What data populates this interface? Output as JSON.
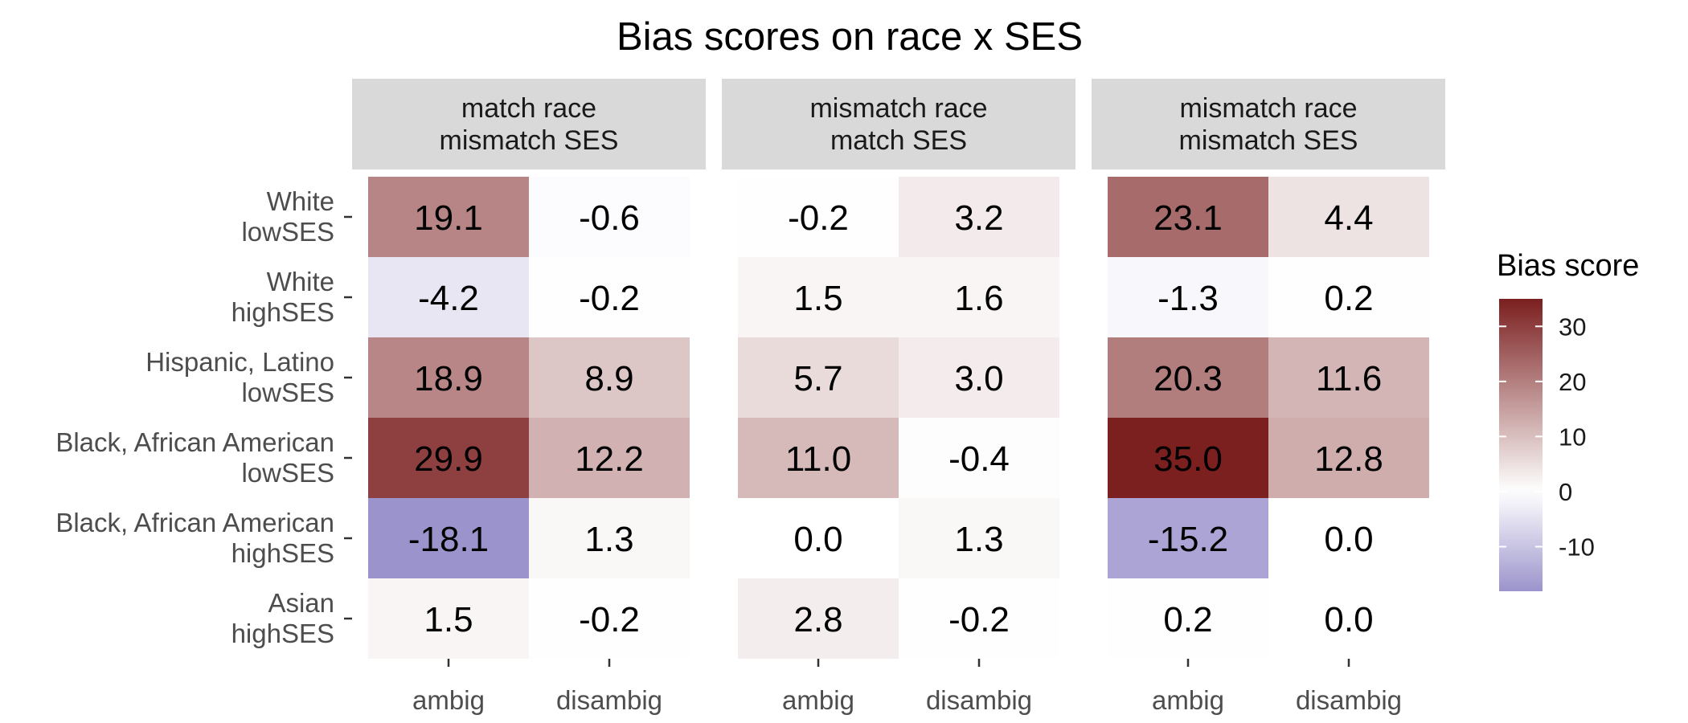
{
  "chart_data": {
    "type": "heatmap",
    "title": "Bias scores on race x SES",
    "panels": [
      {
        "label_lines": [
          "match race",
          "mismatch SES"
        ]
      },
      {
        "label_lines": [
          "mismatch race",
          "match SES"
        ]
      },
      {
        "label_lines": [
          "mismatch race",
          "mismatch SES"
        ]
      }
    ],
    "x_categories": [
      "ambig",
      "disambig"
    ],
    "y_categories": [
      {
        "lines": [
          "White",
          "lowSES"
        ]
      },
      {
        "lines": [
          "White",
          "highSES"
        ]
      },
      {
        "lines": [
          "Hispanic, Latino",
          "lowSES"
        ]
      },
      {
        "lines": [
          "Black, African American",
          "lowSES"
        ]
      },
      {
        "lines": [
          "Black, African American",
          "highSES"
        ]
      },
      {
        "lines": [
          "Asian",
          "highSES"
        ]
      }
    ],
    "values": [
      [
        [
          19.1,
          -0.6
        ],
        [
          -4.2,
          -0.2
        ],
        [
          18.9,
          8.9
        ],
        [
          29.9,
          12.2
        ],
        [
          -18.1,
          1.3
        ],
        [
          1.5,
          -0.2
        ]
      ],
      [
        [
          -0.2,
          3.2
        ],
        [
          1.5,
          1.6
        ],
        [
          5.7,
          3.0
        ],
        [
          11.0,
          -0.4
        ],
        [
          0.0,
          1.3
        ],
        [
          2.8,
          -0.2
        ]
      ],
      [
        [
          23.1,
          4.4
        ],
        [
          -1.3,
          0.2
        ],
        [
          20.3,
          11.6
        ],
        [
          35.0,
          12.8
        ],
        [
          -15.2,
          0.0
        ],
        [
          0.2,
          0.0
        ]
      ]
    ],
    "labels": [
      [
        [
          "19.1",
          "-0.6"
        ],
        [
          "-4.2",
          "-0.2"
        ],
        [
          "18.9",
          "8.9"
        ],
        [
          "29.9",
          "12.2"
        ],
        [
          "-18.1",
          "1.3"
        ],
        [
          "1.5",
          "-0.2"
        ]
      ],
      [
        [
          "-0.2",
          "3.2"
        ],
        [
          "1.5",
          "1.6"
        ],
        [
          "5.7",
          "3.0"
        ],
        [
          "11.0",
          "-0.4"
        ],
        [
          "0.0",
          "1.3"
        ],
        [
          "2.8",
          "-0.2"
        ]
      ],
      [
        [
          "23.1",
          "4.4"
        ],
        [
          "-1.3",
          "0.2"
        ],
        [
          "20.3",
          "11.6"
        ],
        [
          "35.0",
          "12.8"
        ],
        [
          "-15.2",
          "0.0"
        ],
        [
          "0.2",
          "0.0"
        ]
      ]
    ],
    "legend": {
      "title": "Bias score",
      "placement": "right",
      "range": [
        -18.1,
        35.0
      ],
      "ticks": [
        30,
        20,
        10,
        0,
        -10
      ],
      "tick_labels": [
        "30",
        "20",
        "10",
        "0",
        "-10"
      ],
      "color_high": "#7b1f1f",
      "color_mid": "#ffffff",
      "color_low": "#9b93cc"
    }
  }
}
